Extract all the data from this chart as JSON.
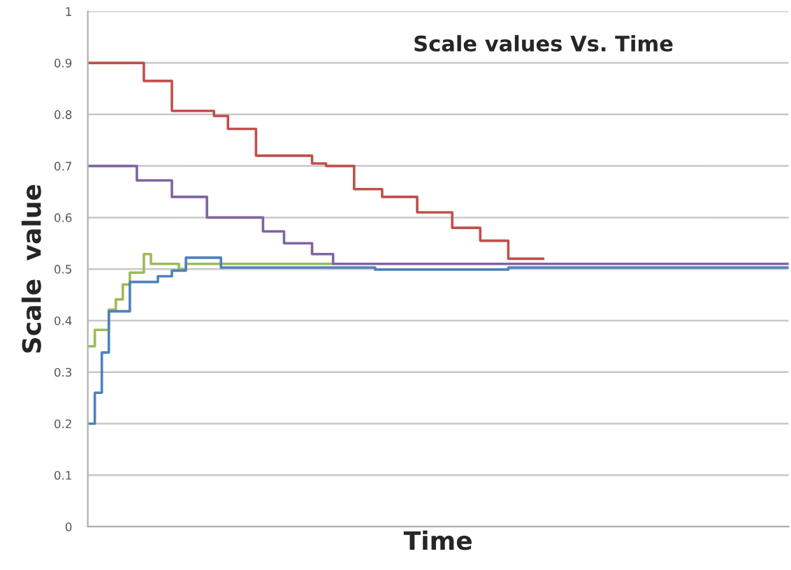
{
  "chart_data": {
    "type": "step",
    "title": "Scale values Vs. Time",
    "xlabel": "Time",
    "ylabel": "Scale  value",
    "categories": [
      null,
      null,
      null,
      null,
      null,
      null,
      null,
      null,
      null,
      null,
      null,
      null,
      null,
      null,
      null,
      null,
      null,
      null,
      null,
      null,
      null,
      null,
      null,
      null,
      null,
      null,
      null,
      null,
      null,
      null,
      null,
      null,
      null,
      null,
      null,
      null,
      null,
      null,
      null,
      null,
      null,
      null,
      null,
      null,
      null,
      null,
      null,
      null,
      null,
      null,
      null,
      null,
      null,
      null,
      null,
      null,
      null,
      null,
      null,
      null,
      null,
      null,
      null,
      null,
      null,
      null,
      null,
      null,
      null,
      null,
      null,
      null,
      null,
      null,
      null,
      null,
      null,
      null,
      null,
      null,
      null,
      null,
      null,
      null,
      null,
      null,
      null,
      null,
      null,
      null,
      null,
      null,
      null,
      null,
      null,
      null,
      null,
      null,
      null,
      null,
      null
    ],
    "series": [
      {
        "color": "#9bbb59",
        "values": [
          0.35,
          0.382,
          0.382,
          0.421,
          0.441,
          0.47,
          0.493,
          0.493,
          0.529,
          0.51,
          0.51,
          0.51,
          0.51,
          0.5,
          0.51,
          0.51,
          0.51,
          0.51,
          0.51,
          0.51,
          0.51,
          0.51,
          0.51,
          0.51,
          0.51,
          0.51,
          0.51,
          0.51,
          0.51,
          0.51,
          0.51,
          0.51,
          0.51,
          0.51,
          0.51,
          0.51,
          null,
          null,
          null,
          null,
          null,
          null,
          null,
          null,
          null,
          null,
          null,
          null,
          null,
          null,
          null,
          null,
          null,
          null,
          null,
          null,
          null,
          null,
          null,
          null,
          null,
          null,
          null,
          null,
          null,
          null,
          null,
          null,
          null,
          null,
          null,
          null,
          null,
          null,
          null,
          null,
          null,
          null,
          null,
          null,
          null,
          null,
          null,
          null,
          null,
          null,
          null,
          null,
          null,
          null,
          null,
          null,
          null,
          null,
          null,
          null,
          null,
          null,
          null,
          null,
          null
        ]
      },
      {
        "color": "#4f81bd",
        "values": [
          0.2,
          0.26,
          0.338,
          0.418,
          0.418,
          0.418,
          0.475,
          0.475,
          0.475,
          0.475,
          0.486,
          0.486,
          0.497,
          0.497,
          0.522,
          0.522,
          0.522,
          0.522,
          0.522,
          0.503,
          0.503,
          0.503,
          0.503,
          0.503,
          0.503,
          0.503,
          0.503,
          0.503,
          0.503,
          0.503,
          0.503,
          0.503,
          0.503,
          0.503,
          0.503,
          0.503,
          0.503,
          0.503,
          0.503,
          0.503,
          0.503,
          0.499,
          0.499,
          0.499,
          0.499,
          0.499,
          0.499,
          0.499,
          0.499,
          0.499,
          0.499,
          0.499,
          0.499,
          0.499,
          0.499,
          0.499,
          0.499,
          0.499,
          0.499,
          0.499,
          0.503,
          0.503,
          0.503,
          0.503,
          0.503,
          0.503,
          0.503,
          0.503,
          0.503,
          0.503,
          0.503,
          0.503,
          0.503,
          0.503,
          0.503,
          0.503,
          0.503,
          0.503,
          0.503,
          0.503,
          0.503,
          0.503,
          0.503,
          0.503,
          0.503,
          0.503,
          0.503,
          0.503,
          0.503,
          0.503,
          0.503,
          0.503,
          0.503,
          0.503,
          0.503,
          0.503,
          0.503,
          0.503,
          0.503,
          0.503,
          0.503
        ]
      },
      {
        "color": "#c0504d",
        "values": [
          0.9,
          0.9,
          0.9,
          0.9,
          0.9,
          0.9,
          0.9,
          0.9,
          0.865,
          0.865,
          0.865,
          0.865,
          0.807,
          0.807,
          0.807,
          0.807,
          0.807,
          0.807,
          0.797,
          0.797,
          0.772,
          0.772,
          0.772,
          0.772,
          0.72,
          0.72,
          0.72,
          0.72,
          0.72,
          0.72,
          0.72,
          0.72,
          0.705,
          0.705,
          0.7,
          0.7,
          0.7,
          0.7,
          0.655,
          0.655,
          0.655,
          0.655,
          0.64,
          0.64,
          0.64,
          0.64,
          0.64,
          0.61,
          0.61,
          0.61,
          0.61,
          0.61,
          0.58,
          0.58,
          0.58,
          0.58,
          0.555,
          0.555,
          0.555,
          0.555,
          0.52,
          0.52,
          0.52,
          0.52,
          0.52,
          0.52,
          null,
          null,
          null,
          null,
          null,
          null,
          null,
          null,
          null,
          null,
          null,
          null,
          null,
          null,
          null,
          null,
          null,
          null,
          null,
          null,
          null,
          null,
          null,
          null,
          null,
          null,
          null,
          null,
          null,
          null,
          null,
          null,
          null,
          null,
          null
        ]
      },
      {
        "color": "#8064a2",
        "values": [
          0.7,
          0.7,
          0.7,
          0.7,
          0.7,
          0.7,
          0.7,
          0.672,
          0.672,
          0.672,
          0.672,
          0.672,
          0.64,
          0.64,
          0.64,
          0.64,
          0.64,
          0.6,
          0.6,
          0.6,
          0.6,
          0.6,
          0.6,
          0.6,
          0.6,
          0.573,
          0.573,
          0.573,
          0.55,
          0.55,
          0.55,
          0.55,
          0.529,
          0.529,
          0.529,
          0.51,
          0.51,
          0.51,
          0.51,
          0.51,
          0.51,
          0.51,
          0.51,
          0.51,
          0.51,
          0.51,
          0.51,
          0.51,
          0.51,
          0.51,
          0.51,
          0.51,
          0.51,
          0.51,
          0.51,
          0.51,
          0.51,
          0.51,
          0.51,
          0.51,
          0.51,
          0.51,
          0.51,
          0.51,
          0.51,
          0.51,
          0.51,
          0.51,
          0.51,
          0.51,
          0.51,
          0.51,
          0.51,
          0.51,
          0.51,
          0.51,
          0.51,
          0.51,
          0.51,
          0.51,
          0.51,
          0.51,
          0.51,
          0.51,
          0.51,
          0.51,
          0.51,
          0.51,
          0.51,
          0.51,
          0.51,
          0.51,
          0.51,
          0.51,
          0.51,
          0.51,
          0.51,
          0.51,
          0.51,
          0.51,
          0.51
        ]
      }
    ],
    "ylim": [
      0,
      1
    ],
    "yticks": [
      0,
      0.1,
      0.2,
      0.3,
      0.4,
      0.5,
      0.6,
      0.7,
      0.8,
      0.9,
      1
    ],
    "grid": "y",
    "tick_labels": "y"
  }
}
